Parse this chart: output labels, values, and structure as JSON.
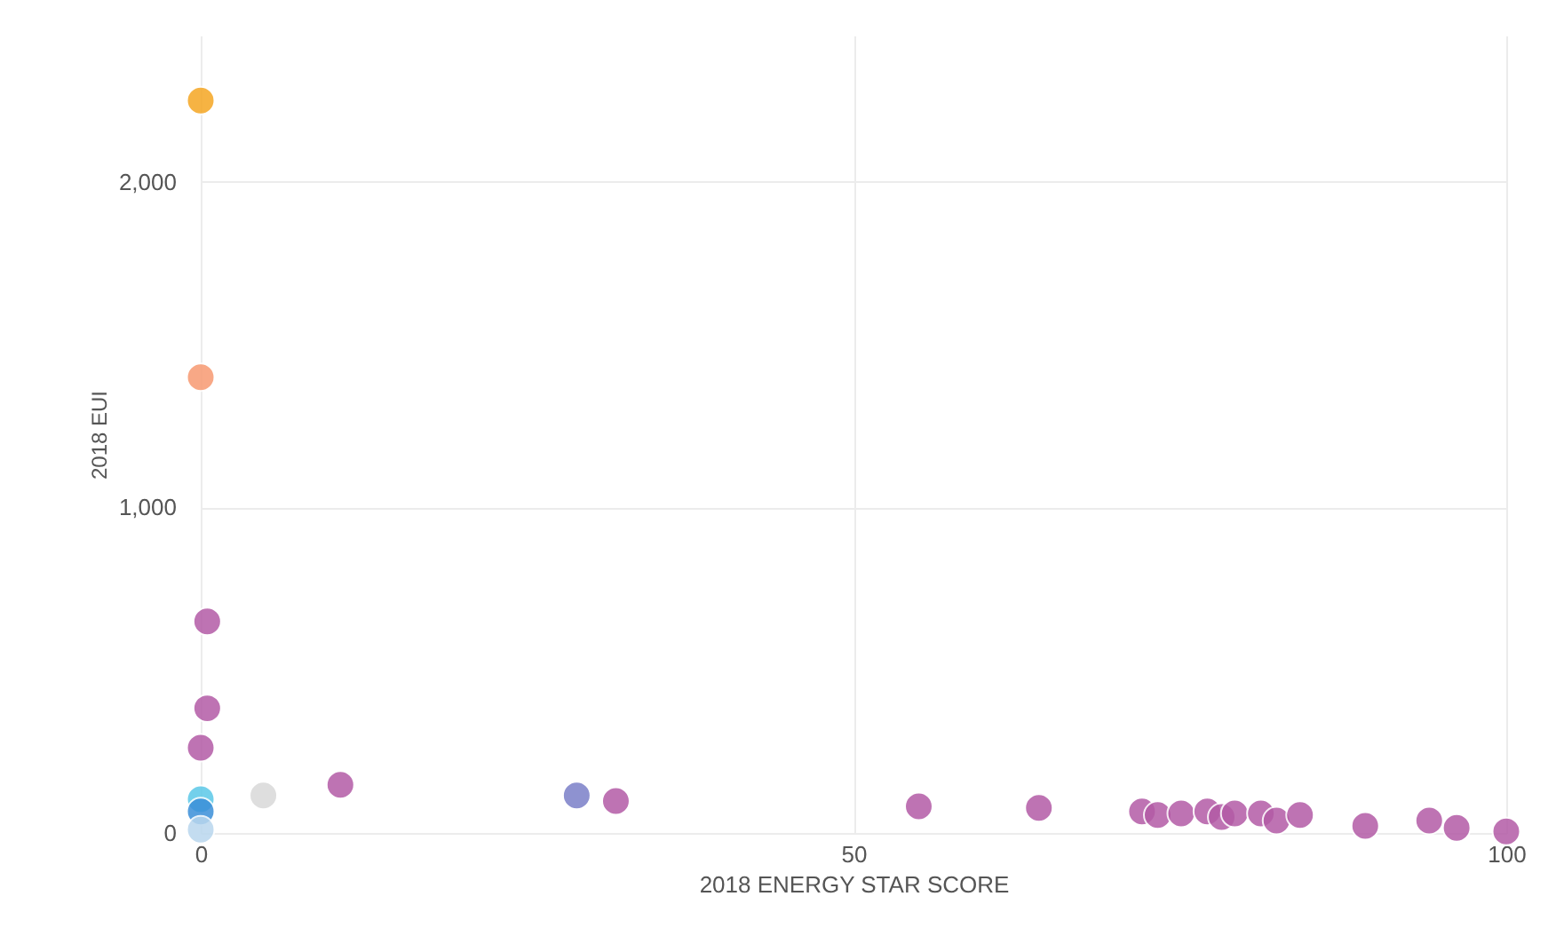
{
  "chart_data": {
    "type": "scatter",
    "xlabel": "2018 ENERGY STAR SCORE",
    "ylabel": "2018 EUI",
    "xlim": [
      0,
      100
    ],
    "xticks": [
      0,
      50,
      100
    ],
    "ylim": [
      0,
      2450
    ],
    "yticks": [
      0,
      {
        "value": 1000,
        "label": "1,000"
      },
      {
        "value": 2000,
        "label": "2,000"
      }
    ],
    "grid": true,
    "marker": "circle",
    "series": [
      {
        "color": "#f5a623",
        "x": [
          0
        ],
        "values": [
          2250
        ]
      },
      {
        "color": "#f79a72",
        "x": [
          0
        ],
        "values": [
          1400
        ]
      },
      {
        "color": "#b35ba6",
        "x": [
          0.5,
          0.5,
          0,
          10.7,
          31.8,
          55,
          64.2,
          72.1,
          73.3,
          75.1,
          77.1,
          78.2,
          79.2,
          81.2,
          82.4,
          84.2,
          89.2,
          94.1,
          96.2,
          100
        ],
        "values": [
          650,
          383,
          262,
          148,
          98,
          82,
          77,
          66,
          55,
          60,
          66,
          49,
          60,
          60,
          38,
          55,
          22,
          38,
          16,
          5
        ]
      },
      {
        "color": "#7b7fc8",
        "x": [
          28.8
        ],
        "values": [
          115
        ]
      },
      {
        "color": "#d9d9d9",
        "x": [
          4.8
        ],
        "values": [
          115
        ]
      },
      {
        "color": "#5bc8e8",
        "x": [
          0
        ],
        "values": [
          104
        ]
      },
      {
        "color": "#3a8fd9",
        "x": [
          0
        ],
        "values": [
          66
        ]
      },
      {
        "color": "#b9d7ee",
        "x": [
          0
        ],
        "values": [
          10
        ]
      }
    ]
  }
}
